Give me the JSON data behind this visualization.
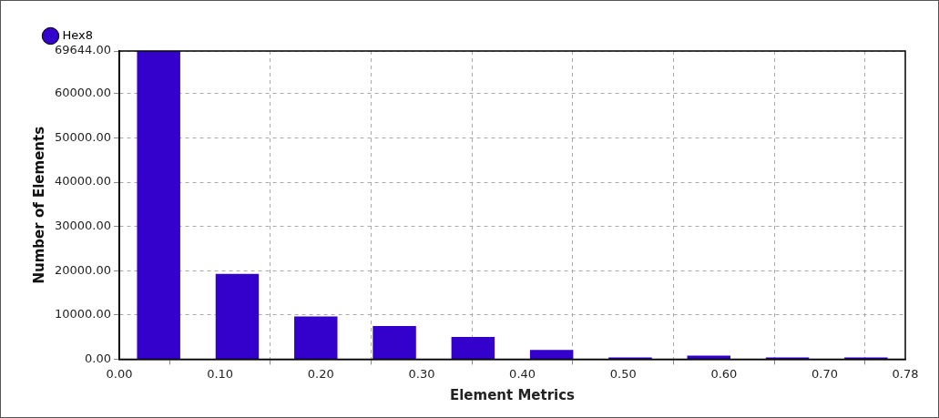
{
  "chart_data": {
    "type": "histogram",
    "xlabel": "Element Metrics",
    "ylabel": "Number of Elements",
    "bins": [
      0,
      0.078,
      0.156,
      0.234,
      0.312,
      0.39,
      0.468,
      0.546,
      0.624,
      0.702,
      0.78
    ],
    "series": [
      {
        "name": "Hex8",
        "color": "#3300cc",
        "values": [
          69644,
          19250,
          9650,
          7500,
          5000,
          2100,
          400,
          800,
          400,
          400
        ]
      }
    ],
    "xlim": [
      0,
      0.78
    ],
    "xticks": [
      {
        "value": 0,
        "label": "0.00"
      },
      {
        "value": 0.1,
        "label": "0.10"
      },
      {
        "value": 0.2,
        "label": "0.20"
      },
      {
        "value": 0.3,
        "label": "0.30"
      },
      {
        "value": 0.4,
        "label": "0.40"
      },
      {
        "value": 0.5,
        "label": "0.50"
      },
      {
        "value": 0.6,
        "label": "0.60"
      },
      {
        "value": 0.7,
        "label": "0.70"
      },
      {
        "value": 0.78,
        "label": "0.78"
      }
    ],
    "ylim": [
      0,
      69644
    ],
    "yticks": [
      {
        "value": 0,
        "label": "0.00"
      },
      {
        "value": 10000,
        "label": "10000.00"
      },
      {
        "value": 20000,
        "label": "20000.00"
      },
      {
        "value": 30000,
        "label": "30000.00"
      },
      {
        "value": 40000,
        "label": "40000.00"
      },
      {
        "value": 50000,
        "label": "50000.00"
      },
      {
        "value": 60000,
        "label": "60000.00"
      },
      {
        "value": 69644,
        "label": "69644.00"
      }
    ],
    "grid": true,
    "legend": "top left"
  }
}
